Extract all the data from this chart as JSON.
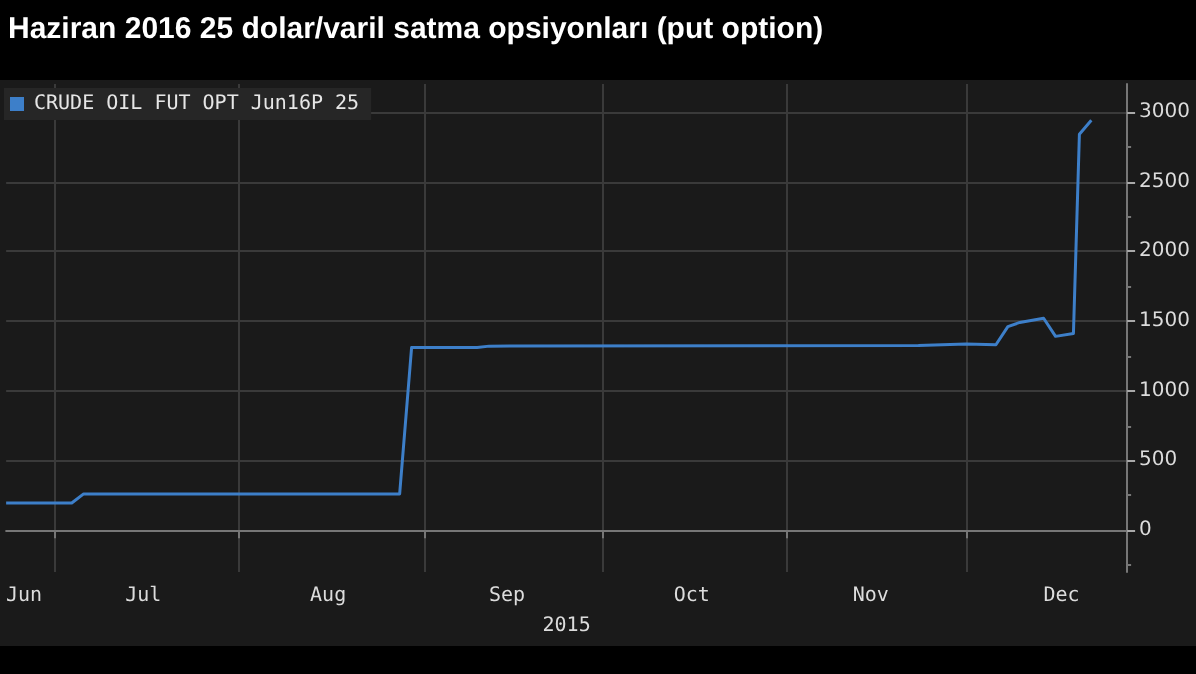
{
  "chart_data": {
    "type": "line",
    "title": "Haziran 2016 25 dolar/varil satma opsiyonları (put option)",
    "xlabel": "2015",
    "legend": "top left",
    "grid": true,
    "x": [
      "2015-06-23",
      "2015-07-04",
      "2015-07-06",
      "2015-08-28",
      "2015-08-30",
      "2015-09-10",
      "2015-09-12",
      "2015-11-23",
      "2015-12-01",
      "2015-12-06",
      "2015-12-08",
      "2015-12-10",
      "2015-12-14",
      "2015-12-16",
      "2015-12-19",
      "2015-12-20",
      "2015-12-22"
    ],
    "series": [
      {
        "name": "CRUDE OIL FUT OPT Jun16P 25",
        "color": "#3d7fc9",
        "values": [
          195,
          195,
          260,
          260,
          1310,
          1310,
          1320,
          1325,
          1335,
          1330,
          1460,
          1490,
          1520,
          1390,
          1410,
          2840,
          2940
        ]
      }
    ],
    "xlim": [
      "2015-06-23",
      "2015-12-28"
    ],
    "xticks": [
      {
        "value": "2015-07-01",
        "label": null
      },
      {
        "value": "2015-08-01",
        "label": null
      },
      {
        "value": "2015-09-01",
        "label": null
      },
      {
        "value": "2015-10-01",
        "label": null
      },
      {
        "value": "2015-11-01",
        "label": null
      },
      {
        "value": "2015-12-01",
        "label": null
      },
      {
        "value": "2015-06-26",
        "label": "Jun"
      },
      {
        "value": "2015-07-16",
        "label": "Jul"
      },
      {
        "value": "2015-08-16",
        "label": "Aug"
      },
      {
        "value": "2015-09-15",
        "label": "Sep"
      },
      {
        "value": "2015-10-16",
        "label": "Oct"
      },
      {
        "value": "2015-11-15",
        "label": "Nov"
      },
      {
        "value": "2015-12-17",
        "label": "Dec"
      }
    ],
    "ylim": [
      -300,
      3200
    ],
    "yticks": [
      {
        "value": -250,
        "label": null
      },
      0,
      {
        "value": 250,
        "label": null
      },
      500,
      {
        "value": 750,
        "label": null
      },
      1000,
      {
        "value": 1250,
        "label": null
      },
      1500,
      {
        "value": 1750,
        "label": null
      },
      2000,
      {
        "value": 2250,
        "label": null
      },
      2500,
      {
        "value": 2750,
        "label": null
      },
      3000
    ]
  }
}
